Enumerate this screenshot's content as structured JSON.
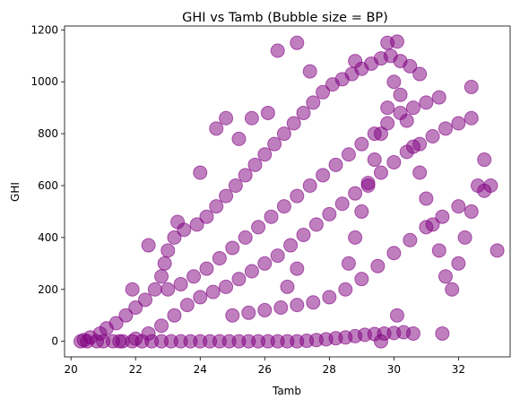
{
  "chart_data": {
    "type": "scatter",
    "title": "GHI vs Tamb (Bubble size = BP)",
    "xlabel": "Tamb",
    "ylabel": "GHI",
    "xlim": [
      19.8,
      33.6
    ],
    "ylim": [
      -60,
      1215
    ],
    "xticks": [
      20,
      22,
      24,
      26,
      28,
      30,
      32
    ],
    "yticks": [
      0,
      200,
      400,
      600,
      800,
      1000,
      1200
    ],
    "grid": false,
    "legend": "none",
    "marker_color": "#800080",
    "marker_alpha": 0.5,
    "series": [
      {
        "points": [
          [
            20.3,
            0
          ],
          [
            20.5,
            0
          ],
          [
            20.8,
            0
          ],
          [
            21.0,
            0
          ],
          [
            21.3,
            0
          ],
          [
            21.6,
            0
          ],
          [
            21.9,
            0
          ],
          [
            22.2,
            0
          ],
          [
            22.5,
            0
          ],
          [
            22.8,
            0
          ],
          [
            23.1,
            0
          ],
          [
            23.4,
            0
          ],
          [
            23.7,
            0
          ],
          [
            24.0,
            0
          ],
          [
            24.3,
            0
          ],
          [
            24.6,
            0
          ],
          [
            24.9,
            0
          ],
          [
            25.2,
            0
          ],
          [
            25.5,
            0
          ],
          [
            25.8,
            0
          ],
          [
            26.1,
            0
          ],
          [
            26.4,
            0
          ],
          [
            26.7,
            0
          ],
          [
            27.0,
            0
          ],
          [
            27.3,
            2
          ],
          [
            27.6,
            5
          ],
          [
            27.9,
            8
          ],
          [
            28.2,
            12
          ],
          [
            28.5,
            15
          ],
          [
            28.8,
            20
          ],
          [
            29.1,
            25
          ],
          [
            29.4,
            28
          ],
          [
            29.7,
            30
          ],
          [
            30.0,
            32
          ],
          [
            30.3,
            35
          ],
          [
            30.6,
            30
          ],
          [
            20.4,
            5
          ],
          [
            20.6,
            15
          ],
          [
            20.9,
            30
          ],
          [
            21.1,
            50
          ],
          [
            21.4,
            70
          ],
          [
            21.7,
            100
          ],
          [
            22.0,
            130
          ],
          [
            22.3,
            160
          ],
          [
            22.6,
            200
          ],
          [
            22.8,
            250
          ],
          [
            22.9,
            300
          ],
          [
            23.0,
            350
          ],
          [
            23.2,
            400
          ],
          [
            23.5,
            430
          ],
          [
            23.9,
            450
          ],
          [
            24.2,
            480
          ],
          [
            24.5,
            520
          ],
          [
            24.8,
            560
          ],
          [
            25.1,
            600
          ],
          [
            25.4,
            640
          ],
          [
            25.7,
            680
          ],
          [
            26.0,
            720
          ],
          [
            26.3,
            760
          ],
          [
            26.6,
            800
          ],
          [
            26.9,
            840
          ],
          [
            27.2,
            880
          ],
          [
            27.5,
            920
          ],
          [
            27.8,
            960
          ],
          [
            28.1,
            990
          ],
          [
            28.4,
            1010
          ],
          [
            28.7,
            1030
          ],
          [
            29.0,
            1050
          ],
          [
            29.3,
            1070
          ],
          [
            29.6,
            1090
          ],
          [
            29.9,
            1100
          ],
          [
            30.2,
            1080
          ],
          [
            30.5,
            1060
          ],
          [
            30.8,
            1030
          ],
          [
            21.5,
            0
          ],
          [
            22.0,
            10
          ],
          [
            22.4,
            30
          ],
          [
            22.8,
            60
          ],
          [
            23.2,
            100
          ],
          [
            23.6,
            140
          ],
          [
            24.0,
            170
          ],
          [
            24.4,
            190
          ],
          [
            24.8,
            210
          ],
          [
            25.2,
            240
          ],
          [
            25.6,
            270
          ],
          [
            26.0,
            300
          ],
          [
            26.4,
            330
          ],
          [
            26.8,
            370
          ],
          [
            27.2,
            410
          ],
          [
            27.6,
            450
          ],
          [
            28.0,
            490
          ],
          [
            28.4,
            530
          ],
          [
            28.8,
            570
          ],
          [
            29.2,
            610
          ],
          [
            29.6,
            650
          ],
          [
            30.0,
            690
          ],
          [
            30.4,
            730
          ],
          [
            30.8,
            760
          ],
          [
            31.2,
            790
          ],
          [
            31.6,
            820
          ],
          [
            32.0,
            840
          ],
          [
            32.4,
            860
          ],
          [
            23.0,
            200
          ],
          [
            23.4,
            220
          ],
          [
            23.8,
            250
          ],
          [
            24.2,
            280
          ],
          [
            24.6,
            320
          ],
          [
            25.0,
            360
          ],
          [
            25.4,
            400
          ],
          [
            25.8,
            440
          ],
          [
            26.2,
            480
          ],
          [
            26.6,
            520
          ],
          [
            27.0,
            560
          ],
          [
            27.4,
            600
          ],
          [
            27.8,
            640
          ],
          [
            28.2,
            680
          ],
          [
            28.6,
            720
          ],
          [
            29.0,
            760
          ],
          [
            29.4,
            800
          ],
          [
            29.8,
            840
          ],
          [
            30.2,
            880
          ],
          [
            30.6,
            900
          ],
          [
            31.0,
            920
          ],
          [
            31.4,
            940
          ],
          [
            25.0,
            100
          ],
          [
            25.5,
            110
          ],
          [
            26.0,
            120
          ],
          [
            26.5,
            130
          ],
          [
            27.0,
            140
          ],
          [
            27.5,
            150
          ],
          [
            28.0,
            170
          ],
          [
            28.5,
            200
          ],
          [
            29.0,
            240
          ],
          [
            29.5,
            290
          ],
          [
            30.0,
            340
          ],
          [
            30.5,
            390
          ],
          [
            31.0,
            440
          ],
          [
            31.5,
            480
          ],
          [
            32.0,
            520
          ],
          [
            28.6,
            300
          ],
          [
            28.8,
            400
          ],
          [
            29.0,
            500
          ],
          [
            29.2,
            600
          ],
          [
            29.4,
            700
          ],
          [
            29.6,
            800
          ],
          [
            29.8,
            900
          ],
          [
            30.0,
            1000
          ],
          [
            30.2,
            950
          ],
          [
            30.4,
            850
          ],
          [
            30.6,
            750
          ],
          [
            30.8,
            650
          ],
          [
            31.0,
            550
          ],
          [
            31.2,
            450
          ],
          [
            31.4,
            350
          ],
          [
            31.6,
            250
          ],
          [
            31.8,
            200
          ],
          [
            32.0,
            300
          ],
          [
            32.2,
            400
          ],
          [
            32.4,
            500
          ],
          [
            32.6,
            600
          ],
          [
            32.8,
            700
          ],
          [
            27.0,
            1150
          ],
          [
            26.4,
            1120
          ],
          [
            29.8,
            1150
          ],
          [
            30.1,
            1155
          ],
          [
            33.2,
            350
          ],
          [
            33.0,
            600
          ],
          [
            32.8,
            580
          ],
          [
            32.4,
            980
          ],
          [
            26.1,
            880
          ],
          [
            24.8,
            860
          ],
          [
            25.2,
            780
          ],
          [
            24.0,
            650
          ],
          [
            23.3,
            460
          ],
          [
            21.9,
            200
          ],
          [
            22.4,
            370
          ],
          [
            27.0,
            280
          ],
          [
            26.7,
            210
          ],
          [
            29.6,
            0
          ],
          [
            31.5,
            30
          ],
          [
            30.1,
            100
          ],
          [
            24.5,
            820
          ],
          [
            25.6,
            860
          ],
          [
            27.4,
            1040
          ],
          [
            28.8,
            1080
          ]
        ]
      }
    ]
  }
}
